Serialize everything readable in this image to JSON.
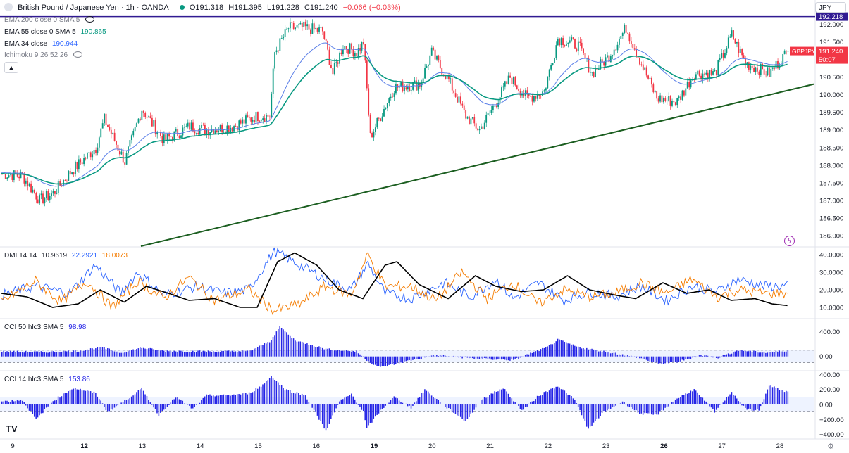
{
  "header": {
    "title": "British Pound / Japanese Yen · 1h · OANDA",
    "open": "O191.318",
    "high": "H191.395",
    "low": "L191.228",
    "close": "C191.240",
    "change": "−0.066 (−0.03%)"
  },
  "legends": {
    "ema200": "EMA 200 close 0 SMA 5",
    "ema55": "EMA 55 close 0 SMA 5",
    "ema55_value": "190.865",
    "ema34": "EMA 34 close",
    "ema34_value": "190.944",
    "ichimoku": "Ichimoku 9 26 52 26",
    "dmi": "DMI 14 14",
    "dmi_adx": "10.9619",
    "dmi_plus": "22.2921",
    "dmi_minus": "18.0073",
    "cci50": "CCI 50 hlc3 SMA 5",
    "cci50_value": "98.98",
    "cci14": "CCI 14 hlc3 SMA 5",
    "cci14_value": "153.86"
  },
  "currency": "JPY",
  "price_labels": {
    "top": "192.218",
    "symbol": "GBPJPY",
    "last": "191.240",
    "countdown": "50:07"
  },
  "colors": {
    "up": "#089981",
    "down": "#f23645",
    "ema34": "#5b7fe8",
    "ema55": "#089981",
    "trendline": "#1b5e20",
    "top_line": "#311b92",
    "dmi_plus": "#2962ff",
    "dmi_minus": "#f57c00",
    "adx": "#000000",
    "cci": "#2323e6"
  },
  "chart_data": [
    {
      "type": "candlestick",
      "symbol": "GBPJPY",
      "timeframe": "1h",
      "y_ticks": [
        186.0,
        186.5,
        187.0,
        187.5,
        188.0,
        188.5,
        189.0,
        189.5,
        190.0,
        190.5,
        191.0,
        191.5,
        192.0
      ],
      "y_tick_labels": [
        "186.000",
        "186.500",
        "187.000",
        "187.500",
        "188.000",
        "188.500",
        "189.000",
        "189.500",
        "190.000",
        "190.500",
        "191.000",
        "191.500",
        "192.000"
      ],
      "ylim": [
        185.7,
        192.25
      ],
      "x_tick_labels": [
        "9",
        "12",
        "13",
        "14",
        "15",
        "16",
        "19",
        "20",
        "21",
        "22",
        "23",
        "26",
        "27",
        "28"
      ],
      "x_tick_index": [
        0,
        42,
        76,
        110,
        144,
        178,
        212,
        246,
        280,
        314,
        348,
        382,
        416,
        450
      ],
      "bars_total": 462,
      "trend_anchors": [
        [
          0,
          187.75
        ],
        [
          12,
          187.7
        ],
        [
          22,
          187.0
        ],
        [
          30,
          187.2
        ],
        [
          40,
          187.8
        ],
        [
          55,
          188.5
        ],
        [
          60,
          189.3
        ],
        [
          72,
          188.1
        ],
        [
          82,
          189.6
        ],
        [
          95,
          188.7
        ],
        [
          110,
          189.1
        ],
        [
          120,
          189.0
        ],
        [
          135,
          189.1
        ],
        [
          150,
          189.4
        ],
        [
          157,
          189.4
        ],
        [
          160,
          191.2
        ],
        [
          168,
          191.9
        ],
        [
          178,
          191.9
        ],
        [
          188,
          191.8
        ],
        [
          194,
          190.6
        ],
        [
          200,
          191.4
        ],
        [
          208,
          191.2
        ],
        [
          212,
          191.5
        ],
        [
          216,
          188.8
        ],
        [
          224,
          189.6
        ],
        [
          230,
          190.2
        ],
        [
          245,
          190.3
        ],
        [
          252,
          191.2
        ],
        [
          262,
          190.4
        ],
        [
          272,
          189.4
        ],
        [
          280,
          189.0
        ],
        [
          290,
          189.8
        ],
        [
          298,
          190.5
        ],
        [
          308,
          189.9
        ],
        [
          318,
          190.1
        ],
        [
          326,
          191.6
        ],
        [
          338,
          191.4
        ],
        [
          346,
          190.6
        ],
        [
          356,
          191.1
        ],
        [
          366,
          191.9
        ],
        [
          374,
          191.0
        ],
        [
          384,
          189.9
        ],
        [
          396,
          189.8
        ],
        [
          406,
          190.6
        ],
        [
          418,
          190.6
        ],
        [
          428,
          191.7
        ],
        [
          436,
          190.9
        ],
        [
          450,
          190.6
        ],
        [
          462,
          191.3
        ]
      ],
      "ema34_end": 190.944,
      "ema55_end": 190.865,
      "last_price": 191.24,
      "top_level": 192.218,
      "trendline": [
        [
          82,
          185.7
        ],
        [
          462,
          190.3
        ]
      ]
    },
    {
      "type": "line",
      "name": "DMI 14 14",
      "y_ticks": [
        10,
        20,
        30,
        40
      ],
      "y_tick_labels": [
        "10.0000",
        "20.0000",
        "30.0000",
        "40.0000"
      ],
      "ylim": [
        4,
        44
      ],
      "series": [
        {
          "name": "+DI",
          "anchors": [
            [
              0,
              17
            ],
            [
              20,
              22
            ],
            [
              40,
              18
            ],
            [
              55,
              34
            ],
            [
              70,
              18
            ],
            [
              80,
              30
            ],
            [
              95,
              17
            ],
            [
              115,
              22
            ],
            [
              130,
              18
            ],
            [
              145,
              20
            ],
            [
              160,
              42
            ],
            [
              175,
              34
            ],
            [
              190,
              26
            ],
            [
              205,
              20
            ],
            [
              215,
              35
            ],
            [
              225,
              18
            ],
            [
              240,
              15
            ],
            [
              260,
              24
            ],
            [
              275,
              16
            ],
            [
              290,
              26
            ],
            [
              300,
              15
            ],
            [
              315,
              24
            ],
            [
              330,
              14
            ],
            [
              345,
              19
            ],
            [
              360,
              16
            ],
            [
              375,
              22
            ],
            [
              390,
              14
            ],
            [
              405,
              22
            ],
            [
              420,
              19
            ],
            [
              432,
              26
            ],
            [
              448,
              22
            ],
            [
              462,
              22
            ]
          ]
        },
        {
          "name": "−DI",
          "anchors": [
            [
              0,
              13
            ],
            [
              20,
              25
            ],
            [
              35,
              13
            ],
            [
              50,
              25
            ],
            [
              65,
              10
            ],
            [
              80,
              25
            ],
            [
              95,
              15
            ],
            [
              110,
              27
            ],
            [
              125,
              14
            ],
            [
              145,
              20
            ],
            [
              160,
              8
            ],
            [
              175,
              12
            ],
            [
              190,
              22
            ],
            [
              205,
              17
            ],
            [
              215,
              40
            ],
            [
              225,
              22
            ],
            [
              240,
              22
            ],
            [
              255,
              14
            ],
            [
              270,
              30
            ],
            [
              285,
              15
            ],
            [
              300,
              24
            ],
            [
              315,
              12
            ],
            [
              330,
              20
            ],
            [
              345,
              16
            ],
            [
              360,
              18
            ],
            [
              375,
              24
            ],
            [
              390,
              18
            ],
            [
              405,
              26
            ],
            [
              420,
              16
            ],
            [
              432,
              20
            ],
            [
              448,
              18
            ],
            [
              462,
              18
            ]
          ]
        },
        {
          "name": "ADX",
          "anchors": [
            [
              0,
              18
            ],
            [
              15,
              16
            ],
            [
              30,
              10
            ],
            [
              45,
              12
            ],
            [
              58,
              20
            ],
            [
              72,
              13
            ],
            [
              85,
              22
            ],
            [
              98,
              18
            ],
            [
              110,
              14
            ],
            [
              125,
              15
            ],
            [
              140,
              10
            ],
            [
              150,
              10
            ],
            [
              162,
              36
            ],
            [
              172,
              41
            ],
            [
              185,
              34
            ],
            [
              198,
              20
            ],
            [
              212,
              15
            ],
            [
              225,
              34
            ],
            [
              232,
              36
            ],
            [
              245,
              23
            ],
            [
              262,
              15
            ],
            [
              278,
              28
            ],
            [
              290,
              22
            ],
            [
              305,
              19
            ],
            [
              318,
              20
            ],
            [
              332,
              28
            ],
            [
              345,
              20
            ],
            [
              360,
              17
            ],
            [
              372,
              15
            ],
            [
              388,
              24
            ],
            [
              402,
              18
            ],
            [
              415,
              20
            ],
            [
              428,
              14
            ],
            [
              442,
              15
            ],
            [
              452,
              12
            ],
            [
              462,
              10.96
            ]
          ]
        }
      ]
    },
    {
      "type": "bar",
      "name": "CCI 50 hlc3 SMA 5",
      "y_ticks": [
        0,
        400
      ],
      "y_tick_labels": [
        "0.00",
        "400.00"
      ],
      "ylim": [
        -220,
        600
      ],
      "band": [
        -100,
        100
      ],
      "anchors": [
        [
          0,
          80
        ],
        [
          25,
          70
        ],
        [
          45,
          90
        ],
        [
          58,
          150
        ],
        [
          70,
          60
        ],
        [
          82,
          140
        ],
        [
          95,
          90
        ],
        [
          125,
          80
        ],
        [
          145,
          85
        ],
        [
          157,
          240
        ],
        [
          163,
          480
        ],
        [
          172,
          260
        ],
        [
          190,
          120
        ],
        [
          208,
          80
        ],
        [
          215,
          -80
        ],
        [
          222,
          -180
        ],
        [
          240,
          -60
        ],
        [
          255,
          20
        ],
        [
          275,
          -30
        ],
        [
          300,
          -60
        ],
        [
          308,
          30
        ],
        [
          320,
          150
        ],
        [
          326,
          270
        ],
        [
          338,
          150
        ],
        [
          360,
          50
        ],
        [
          375,
          -30
        ],
        [
          385,
          -120
        ],
        [
          396,
          -90
        ],
        [
          410,
          20
        ],
        [
          420,
          -20
        ],
        [
          432,
          100
        ],
        [
          448,
          60
        ],
        [
          462,
          99
        ]
      ]
    },
    {
      "type": "bar",
      "name": "CCI 14 hlc3 SMA 5",
      "y_ticks": [
        -400,
        -200,
        0,
        200,
        400
      ],
      "y_tick_labels": [
        "−400.00",
        "−200.00",
        "0.00",
        "200.00",
        "400.00"
      ],
      "ylim": [
        -440,
        440
      ],
      "band": [
        -100,
        100
      ],
      "anchors": [
        [
          0,
          40
        ],
        [
          12,
          60
        ],
        [
          20,
          -200
        ],
        [
          30,
          50
        ],
        [
          42,
          220
        ],
        [
          55,
          150
        ],
        [
          62,
          -100
        ],
        [
          72,
          50
        ],
        [
          82,
          210
        ],
        [
          92,
          -140
        ],
        [
          102,
          100
        ],
        [
          112,
          -60
        ],
        [
          120,
          120
        ],
        [
          132,
          120
        ],
        [
          145,
          150
        ],
        [
          153,
          260
        ],
        [
          158,
          380
        ],
        [
          166,
          200
        ],
        [
          178,
          120
        ],
        [
          190,
          -350
        ],
        [
          198,
          40
        ],
        [
          205,
          140
        ],
        [
          212,
          -100
        ],
        [
          214,
          -320
        ],
        [
          222,
          -80
        ],
        [
          230,
          100
        ],
        [
          240,
          -40
        ],
        [
          248,
          200
        ],
        [
          262,
          -60
        ],
        [
          272,
          -220
        ],
        [
          282,
          80
        ],
        [
          294,
          220
        ],
        [
          305,
          -80
        ],
        [
          315,
          120
        ],
        [
          326,
          250
        ],
        [
          336,
          60
        ],
        [
          344,
          -330
        ],
        [
          352,
          -120
        ],
        [
          364,
          40
        ],
        [
          374,
          -120
        ],
        [
          384,
          -140
        ],
        [
          396,
          80
        ],
        [
          406,
          200
        ],
        [
          418,
          -100
        ],
        [
          428,
          170
        ],
        [
          436,
          -60
        ],
        [
          444,
          -80
        ],
        [
          450,
          250
        ],
        [
          462,
          154
        ]
      ]
    }
  ]
}
